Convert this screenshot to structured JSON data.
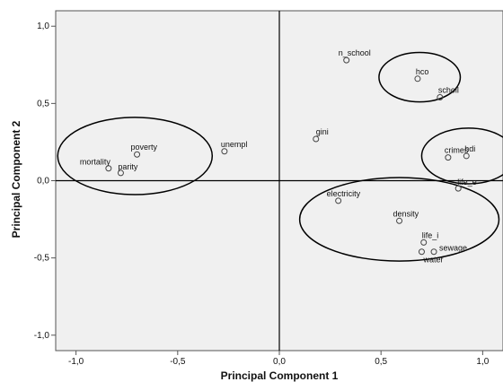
{
  "chart_data": {
    "type": "scatter",
    "xlabel": "Principal Component 1",
    "ylabel": "Principal Component 2",
    "xlim": [
      -1.1,
      1.1
    ],
    "ylim": [
      -1.1,
      1.1
    ],
    "xticks": [
      -1.0,
      -0.5,
      0.0,
      0.5,
      1.0
    ],
    "yticks": [
      -1.0,
      -0.5,
      0.0,
      0.5,
      1.0
    ],
    "xtick_labels": [
      "-1,0",
      "-0,5",
      "0,0",
      "0,5",
      "1,0"
    ],
    "ytick_labels": [
      "-1,0",
      "-0,5",
      "0,0",
      "0,5",
      "1,0"
    ],
    "grid": false,
    "reference_lines": {
      "x": 0,
      "y": 0
    },
    "points": [
      {
        "label": "n_school",
        "x": 0.33,
        "y": 0.78
      },
      {
        "label": "hco",
        "x": 0.68,
        "y": 0.66
      },
      {
        "label": "scholl",
        "x": 0.79,
        "y": 0.54
      },
      {
        "label": "gini",
        "x": 0.18,
        "y": 0.27
      },
      {
        "label": "crimes",
        "x": 0.83,
        "y": 0.15
      },
      {
        "label": "hdi",
        "x": 0.92,
        "y": 0.16
      },
      {
        "label": "life_e",
        "x": 0.88,
        "y": -0.05
      },
      {
        "label": "electricity",
        "x": 0.29,
        "y": -0.13
      },
      {
        "label": "density",
        "x": 0.59,
        "y": -0.26
      },
      {
        "label": "life_i",
        "x": 0.71,
        "y": -0.4
      },
      {
        "label": "water",
        "x": 0.7,
        "y": -0.46
      },
      {
        "label": "sewage",
        "x": 0.76,
        "y": -0.46
      },
      {
        "label": "unempl",
        "x": -0.27,
        "y": 0.19
      },
      {
        "label": "poverty",
        "x": -0.7,
        "y": 0.17
      },
      {
        "label": "mortality",
        "x": -0.84,
        "y": 0.08
      },
      {
        "label": "parity",
        "x": -0.78,
        "y": 0.05
      }
    ],
    "ellipses": [
      {
        "cx": -0.71,
        "cy": 0.16,
        "rx": 0.38,
        "ry": 0.25
      },
      {
        "cx": 0.69,
        "cy": 0.67,
        "rx": 0.2,
        "ry": 0.16
      },
      {
        "cx": 0.93,
        "cy": 0.16,
        "rx": 0.23,
        "ry": 0.18
      },
      {
        "cx": 0.59,
        "cy": -0.25,
        "rx": 0.49,
        "ry": 0.27
      }
    ],
    "colors": {
      "plot_background": "#f0f0f0",
      "marker": "#444444",
      "line": "#000000"
    }
  }
}
